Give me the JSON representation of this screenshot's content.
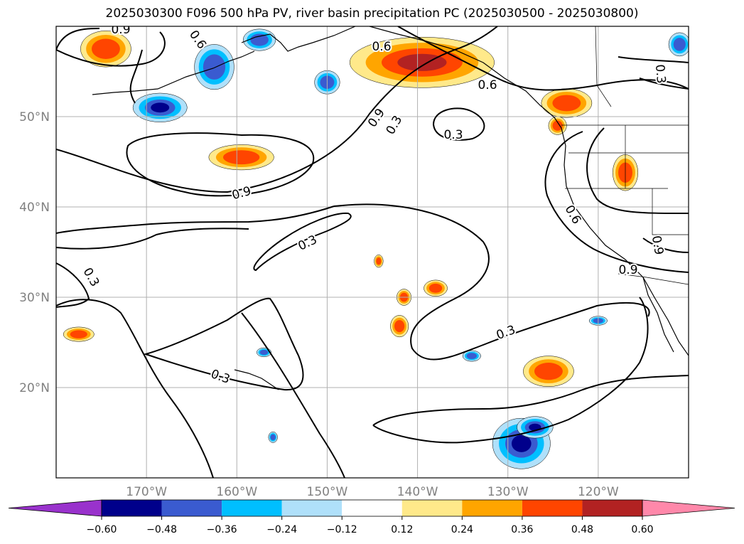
{
  "chart_data": {
    "type": "heatmap",
    "title": "2025030300 F096 500 hPa PV, river basin precipitation PC (2025030500 - 2025030800)",
    "map": {
      "lon_range": [
        -180,
        -110
      ],
      "lat_range": [
        10,
        60
      ],
      "lon_ticks": [
        -170,
        -160,
        -150,
        -140,
        -130,
        -120
      ],
      "lat_ticks": [
        20,
        30,
        40,
        50
      ],
      "lon_tick_labels": [
        "170°W",
        "160°W",
        "150°W",
        "140°W",
        "130°W",
        "120°W"
      ],
      "lat_tick_labels": [
        "20°N",
        "30°N",
        "40°N",
        "50°N"
      ],
      "grid": true
    },
    "colorbar": {
      "boundaries": [
        -0.6,
        -0.48,
        -0.36,
        -0.24,
        -0.12,
        0.12,
        0.24,
        0.36,
        0.48,
        0.6
      ],
      "tick_labels": [
        "−0.60",
        "−0.48",
        "−0.36",
        "−0.24",
        "−0.12",
        "0.12",
        "0.24",
        "0.36",
        "0.48",
        "0.60"
      ],
      "colors": [
        "#9932cc",
        "#00008b",
        "#3a5bd0",
        "#00bfff",
        "#afe0fa",
        "#ffffff",
        "#ffe98a",
        "#ffa500",
        "#ff4500",
        "#b22222",
        "#ff88aa"
      ],
      "extend": "both"
    },
    "contour_levels": [
      0.3,
      0.6,
      0.9
    ],
    "contour_label_values": [
      "0.9",
      "0.6",
      "0.6",
      "0.9",
      "0.3",
      "0.3",
      "0.9",
      "0.3",
      "0.3",
      "0.3",
      "0.3",
      "0.6",
      "0.9",
      "0.9",
      "0.6",
      "0.3"
    ],
    "blobs": [
      {
        "lon": -174.5,
        "lat": 57.5,
        "rlon": 2.8,
        "rlat": 2.0,
        "value": 0.4
      },
      {
        "lon": -168.5,
        "lat": 51.0,
        "rlon": 3.0,
        "rlat": 1.6,
        "value": -0.5
      },
      {
        "lon": -162.5,
        "lat": 55.5,
        "rlon": 2.2,
        "rlat": 2.5,
        "value": -0.4
      },
      {
        "lon": -157.5,
        "lat": 58.5,
        "rlon": 1.8,
        "rlat": 1.2,
        "value": -0.38
      },
      {
        "lon": -150.0,
        "lat": 53.8,
        "rlon": 1.4,
        "rlat": 1.3,
        "value": -0.4
      },
      {
        "lon": -159.5,
        "lat": 45.5,
        "rlon": 3.6,
        "rlat": 1.4,
        "value": 0.45
      },
      {
        "lon": -177.5,
        "lat": 25.9,
        "rlon": 1.7,
        "rlat": 0.8,
        "value": 0.42
      },
      {
        "lon": -139.5,
        "lat": 56.0,
        "rlon": 8.0,
        "rlat": 2.8,
        "value": 0.5
      },
      {
        "lon": -123.5,
        "lat": 51.5,
        "rlon": 2.8,
        "rlat": 1.6,
        "value": 0.42
      },
      {
        "lon": -124.5,
        "lat": 49.0,
        "rlon": 1.0,
        "rlat": 1.0,
        "value": 0.4
      },
      {
        "lon": -117.0,
        "lat": 43.8,
        "rlon": 1.4,
        "rlat": 2.0,
        "value": 0.42
      },
      {
        "lon": -111.0,
        "lat": 58.0,
        "rlon": 1.2,
        "rlat": 1.3,
        "value": -0.38
      },
      {
        "lon": -144.3,
        "lat": 34.0,
        "rlon": 0.5,
        "rlat": 0.7,
        "value": 0.38
      },
      {
        "lon": -141.5,
        "lat": 30.0,
        "rlon": 0.8,
        "rlat": 0.9,
        "value": 0.4
      },
      {
        "lon": -138.0,
        "lat": 31.0,
        "rlon": 1.3,
        "rlat": 0.9,
        "value": 0.4
      },
      {
        "lon": -142.0,
        "lat": 26.8,
        "rlon": 1.0,
        "rlat": 1.2,
        "value": 0.4
      },
      {
        "lon": -125.5,
        "lat": 21.8,
        "rlon": 2.8,
        "rlat": 1.7,
        "value": 0.46
      },
      {
        "lon": -120.0,
        "lat": 27.4,
        "rlon": 1.0,
        "rlat": 0.5,
        "value": -0.38
      },
      {
        "lon": -134.0,
        "lat": 23.5,
        "rlon": 1.0,
        "rlat": 0.6,
        "value": -0.38
      },
      {
        "lon": -157.0,
        "lat": 23.9,
        "rlon": 0.8,
        "rlat": 0.5,
        "value": -0.38
      },
      {
        "lon": -156.0,
        "lat": 14.5,
        "rlon": 0.5,
        "rlat": 0.6,
        "value": -0.38
      },
      {
        "lon": -128.5,
        "lat": 13.8,
        "rlon": 3.2,
        "rlat": 2.8,
        "value": -0.52
      },
      {
        "lon": -127.0,
        "lat": 15.6,
        "rlon": 2.0,
        "rlat": 1.2,
        "value": -0.5
      }
    ]
  }
}
